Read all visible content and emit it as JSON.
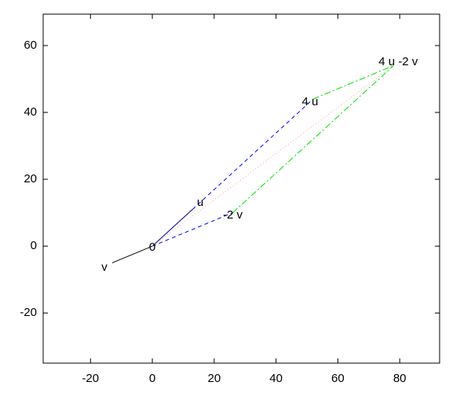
{
  "chart_data": {
    "type": "vector",
    "xlim": [
      -35.3,
      92.9
    ],
    "ylim": [
      -35,
      69.4
    ],
    "xticks": [
      -20,
      0,
      20,
      40,
      60,
      80
    ],
    "yticks": [
      -20,
      0,
      20,
      40,
      60
    ],
    "series": [
      {
        "color": "#000080",
        "dash": "solid",
        "x": [
          0,
          13
        ],
        "y": [
          0,
          11
        ]
      },
      {
        "color": "#000000",
        "dash": "solid",
        "x": [
          0,
          -13
        ],
        "y": [
          0,
          -5
        ]
      },
      {
        "color": "#0000ff",
        "dash": "dashed",
        "x": [
          13,
          52
        ],
        "y": [
          11,
          44
        ]
      },
      {
        "color": "#0000ff",
        "dash": "dashed",
        "x": [
          0,
          26
        ],
        "y": [
          0,
          10
        ]
      },
      {
        "color": "#00e000",
        "dash": "dashdot",
        "x": [
          52,
          78
        ],
        "y": [
          44,
          54
        ]
      },
      {
        "color": "#00e000",
        "dash": "dashdot",
        "x": [
          26,
          78
        ],
        "y": [
          10,
          54
        ]
      },
      {
        "color": "#ffa0a0",
        "dash": "dotted",
        "x": [
          0,
          78
        ],
        "y": [
          0,
          54
        ]
      }
    ],
    "labels": [
      {
        "text": "0",
        "x": 0,
        "y": -0.5
      },
      {
        "text": "u",
        "x": 15.5,
        "y": 13
      },
      {
        "text": "v",
        "x": -15.5,
        "y": -6.4
      },
      {
        "text": "-2 v",
        "x": 26,
        "y": 9.2
      },
      {
        "text": "4 u",
        "x": 51,
        "y": 43
      },
      {
        "text": "4 u -2 v",
        "x": 79.5,
        "y": 55
      }
    ]
  }
}
